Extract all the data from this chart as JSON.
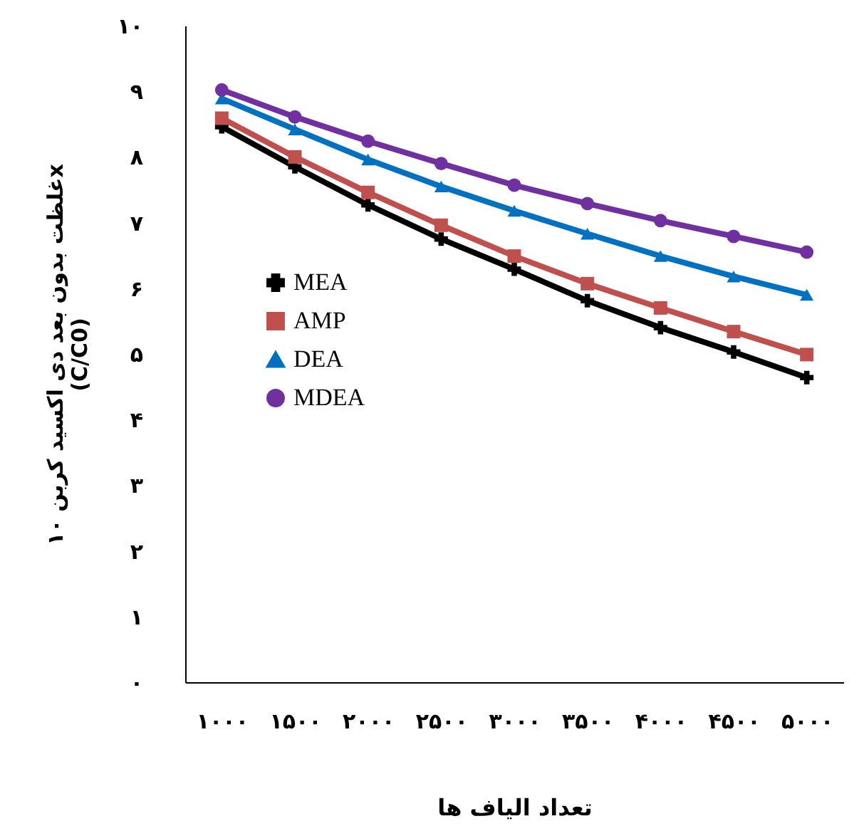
{
  "chart_data": {
    "type": "line",
    "xlabel": "تعداد الیاف ها",
    "ylabel": "غلظت بدون بعد دی اکسید کربن ۱۰x\n(C/C0)",
    "categories": [
      "۱۰۰۰",
      "۱۵۰۰",
      "۲۰۰۰",
      "۲۵۰۰",
      "۳۰۰۰",
      "۳۵۰۰",
      "۴۰۰۰",
      "۴۵۰۰",
      "۵۰۰۰"
    ],
    "series": [
      {
        "name": "MEA",
        "color": "#000000",
        "marker": "cross",
        "values": [
          8.46,
          7.85,
          7.27,
          6.75,
          6.29,
          5.81,
          5.4,
          5.03,
          4.64
        ]
      },
      {
        "name": "AMP",
        "color": "#c0504d",
        "marker": "square",
        "values": [
          8.59,
          8.0,
          7.46,
          6.96,
          6.49,
          6.07,
          5.7,
          5.34,
          4.99
        ]
      },
      {
        "name": "DEA",
        "color": "#0070c0",
        "marker": "triangle",
        "values": [
          8.89,
          8.42,
          7.96,
          7.55,
          7.18,
          6.83,
          6.49,
          6.18,
          5.9
        ]
      },
      {
        "name": "MDEA",
        "color": "#7030a0",
        "marker": "circle",
        "values": [
          9.02,
          8.61,
          8.24,
          7.9,
          7.57,
          7.29,
          7.03,
          6.79,
          6.55
        ]
      }
    ],
    "ylim": [
      0,
      10
    ],
    "yticks": [
      {
        "value": 0,
        "label": "۰"
      },
      {
        "value": 1,
        "label": "۱"
      },
      {
        "value": 2,
        "label": "۲"
      },
      {
        "value": 3,
        "label": "۳"
      },
      {
        "value": 4,
        "label": "۴"
      },
      {
        "value": 5,
        "label": "۵"
      },
      {
        "value": 6,
        "label": "۶"
      },
      {
        "value": 7,
        "label": "۷"
      },
      {
        "value": 8,
        "label": "۸"
      },
      {
        "value": 9,
        "label": "۹"
      },
      {
        "value": 10,
        "label": "۱۰"
      }
    ],
    "grid": false,
    "legend": "left"
  }
}
